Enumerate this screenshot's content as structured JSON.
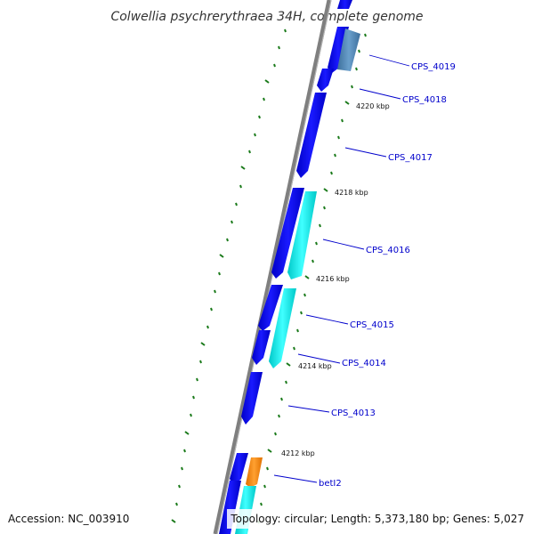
{
  "title": "Colwellia psychrerythraea 34H, complete genome",
  "footer": {
    "accession": "Accession: NC_003910",
    "summary": "Topology: circular; Length: 5,373,180 bp; Genes: 5,027"
  },
  "colors": {
    "backbone": "#808080",
    "forward_gene": "#0000ee",
    "forward_gene_highlight": "#3a3aff",
    "cyan_gene": "#00e5e5",
    "steelblue_gene": "#4f86b8",
    "orange_gene": "#ff8c00",
    "tick": "#1a7a1a",
    "label": "#0000cc"
  },
  "kbp_labels": [
    "4220 kbp",
    "4218 kbp",
    "4216 kbp",
    "4214 kbp",
    "4212 kbp"
  ],
  "gene_labels": [
    "CPS_4019",
    "CPS_4018",
    "CPS_4017",
    "CPS_4016",
    "CPS_4015",
    "CPS_4014",
    "CPS_4013",
    "betI2"
  ]
}
